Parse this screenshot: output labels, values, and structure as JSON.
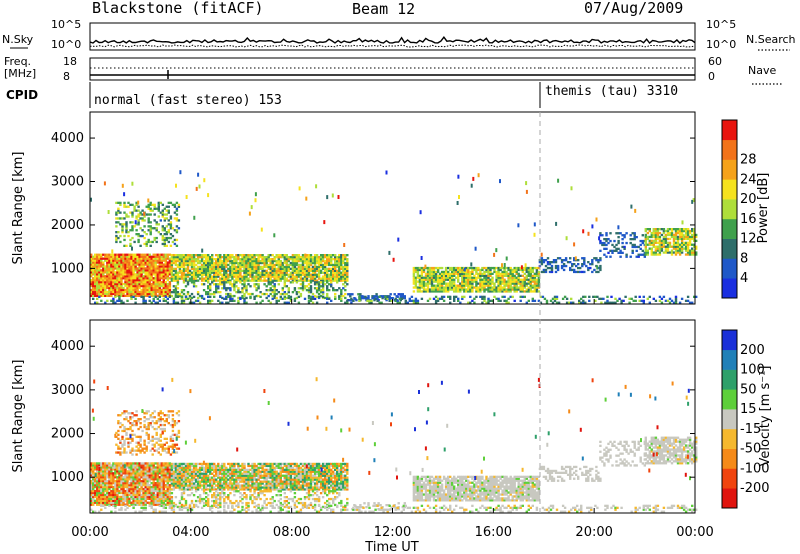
{
  "header": {
    "title": "Blackstone (fitACF)",
    "beam": "Beam 12",
    "date": "07/Aug/2009"
  },
  "chart_data": {
    "type": "heatmap",
    "x_time_ticks": [
      "00:00",
      "04:00",
      "08:00",
      "12:00",
      "16:00",
      "20:00",
      "00:00"
    ],
    "xlabel": "Time UT",
    "mode_change_time": "18:00",
    "params_panels": {
      "nsky": {
        "label": "N.Sky",
        "right_label": "N.Search",
        "ticks_left": [
          "10^5",
          "10^0"
        ],
        "ticks_right": [
          "10^5",
          "10^0"
        ]
      },
      "freq": {
        "label_line1": "Freq.",
        "label_line2": "[MHz]",
        "ticks_left": [
          "18",
          "8"
        ],
        "right_label": "Nave",
        "ticks_right": [
          "60",
          "0"
        ]
      },
      "cpid": {
        "label": "CPID",
        "modes": [
          {
            "name": "normal (fast stereo) 153",
            "start": "00:00",
            "end": "18:00"
          },
          {
            "name": "themis (tau) 3310",
            "start": "18:00",
            "end": "24:00"
          }
        ]
      }
    },
    "panels": [
      {
        "id": "power",
        "ylabel": "Slant Range [km]",
        "y_ticks": [
          1000,
          2000,
          3000,
          4000
        ],
        "ylim": [
          180,
          4600
        ],
        "colorbar": {
          "label": "Power [dB]",
          "levels": [
            "4",
            "8",
            "12",
            "16",
            "20",
            "24",
            "28"
          ],
          "colors": [
            "#1a2fe0",
            "#1f58c8",
            "#2e6e6a",
            "#3fa04c",
            "#aede3a",
            "#f5e21e",
            "#f5a21a",
            "#f2731a",
            "#e8140e"
          ]
        }
      },
      {
        "id": "velocity",
        "ylabel": "Slant Range [km]",
        "y_ticks": [
          1000,
          2000,
          3000,
          4000
        ],
        "ylim": [
          180,
          4600
        ],
        "colorbar": {
          "label": "Velocity [m s⁻¹]",
          "levels": [
            "-200",
            "-100",
            "-50",
            "-15",
            "15",
            "50",
            "100",
            "200"
          ],
          "colors": [
            "#e0140e",
            "#f0440e",
            "#f58a18",
            "#f5b82e",
            "#c8c8c0",
            "#5ecf3a",
            "#2ea06a",
            "#2080b8",
            "#1a30d8"
          ]
        }
      }
    ],
    "echo_regions": [
      {
        "t0": 0.0,
        "t1": 3.2,
        "r0": 350,
        "r1": 1300,
        "dens": 0.95,
        "pw": [
          0.5,
          1.0
        ],
        "vel": [
          -0.9,
          0.3
        ]
      },
      {
        "t0": 1.0,
        "t1": 3.5,
        "r0": 1500,
        "r1": 2500,
        "dens": 0.35,
        "pw": [
          0.2,
          0.6
        ],
        "vel": [
          -0.7,
          0.1
        ]
      },
      {
        "t0": 3.2,
        "t1": 10.2,
        "r0": 700,
        "r1": 1300,
        "dens": 0.9,
        "pw": [
          0.3,
          0.75
        ],
        "vel": [
          -0.6,
          0.6
        ]
      },
      {
        "t0": 3.2,
        "t1": 10.2,
        "r0": 300,
        "r1": 700,
        "dens": 0.35,
        "pw": [
          0.2,
          0.6
        ],
        "vel": [
          -0.4,
          0.3
        ]
      },
      {
        "t0": 10.2,
        "t1": 12.5,
        "r0": 250,
        "r1": 400,
        "dens": 0.4,
        "pw": [
          0.1,
          0.35
        ],
        "vel": [
          -0.1,
          0.1
        ]
      },
      {
        "t0": 12.8,
        "t1": 17.8,
        "r0": 450,
        "r1": 1000,
        "dens": 0.85,
        "pw": [
          0.3,
          0.7
        ],
        "vel": [
          -0.15,
          0.15
        ]
      },
      {
        "t0": 17.8,
        "t1": 20.2,
        "r0": 900,
        "r1": 1250,
        "dens": 0.4,
        "pw": [
          0.1,
          0.3
        ],
        "vel": [
          -0.12,
          0.12
        ]
      },
      {
        "t0": 20.2,
        "t1": 22.0,
        "r0": 1250,
        "r1": 1800,
        "dens": 0.3,
        "pw": [
          0.1,
          0.3
        ],
        "vel": [
          -0.1,
          0.1
        ]
      },
      {
        "t0": 22.0,
        "t1": 24.0,
        "r0": 1300,
        "r1": 1900,
        "dens": 0.75,
        "pw": [
          0.3,
          0.75
        ],
        "vel": [
          -0.15,
          0.15
        ]
      },
      {
        "t0": 0.0,
        "t1": 24.0,
        "r0": 190,
        "r1": 330,
        "dens": 0.3,
        "pw": [
          0.1,
          0.5
        ],
        "vel": [
          -0.2,
          0.2
        ]
      }
    ]
  }
}
